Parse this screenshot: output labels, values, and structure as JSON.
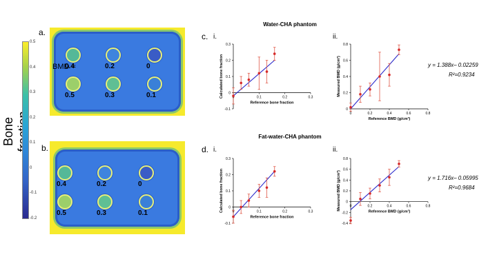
{
  "colorbar": {
    "label": "Bone fraction",
    "ticks": [
      "0.5",
      "0.4",
      "0.3",
      "0.2",
      "0.1",
      "0",
      "-0.1",
      "-0.2"
    ],
    "colors": [
      "#ffef2a",
      "#3cc0a8",
      "#2e87d8",
      "#2a2a8f"
    ]
  },
  "panel_a": {
    "letter": "a.",
    "bmd_prefix": "BMD =",
    "vial_labels": [
      "0.4",
      "0.2",
      "0",
      "0.5",
      "0.3",
      "0.1"
    ]
  },
  "panel_b": {
    "letter": "b.",
    "vial_labels": [
      "0.4",
      "0.2",
      "0",
      "0.5",
      "0.3",
      "0.1"
    ]
  },
  "panel_c": {
    "letter": "c.",
    "sub_i": "i.",
    "sub_ii": "ii.",
    "title": "Water-CHA phantom",
    "equation": "y = 1.388x– 0.02259",
    "r2": "R²=0.9234"
  },
  "panel_d": {
    "letter": "d.",
    "sub_i": "i.",
    "sub_ii": "ii.",
    "title": "Fat-water-CHA phantom",
    "equation": "y = 1.716x– 0.05995",
    "r2": "R²=0.9684"
  },
  "chart_data": [
    {
      "id": "c-i",
      "type": "scatter",
      "title": "",
      "xlabel": "Reference bone fraction",
      "ylabel": "Calculated bone fraction",
      "xlim": [
        0,
        0.3
      ],
      "ylim": [
        -0.1,
        0.3
      ],
      "xticks": [
        "0",
        "0.1",
        "0.2",
        "0.3"
      ],
      "yticks": [
        "-0.1",
        "0",
        "0.1",
        "0.2",
        "0.3"
      ],
      "x": [
        0,
        0.03,
        0.06,
        0.1,
        0.13,
        0.16
      ],
      "y": [
        -0.02,
        0.06,
        0.08,
        0.12,
        0.13,
        0.24
      ],
      "err": [
        0.05,
        0.04,
        0.04,
        0.1,
        0.07,
        0.04
      ],
      "fit": [
        [
          0,
          -0.02
        ],
        [
          0.16,
          0.2
        ]
      ]
    },
    {
      "id": "c-ii",
      "type": "scatter",
      "title": "",
      "xlabel": "Reference BMD (g/cm³)",
      "ylabel": "Measured BMD (g/cm³)",
      "xlim": [
        0,
        0.8
      ],
      "ylim": [
        0,
        0.8
      ],
      "xticks": [
        "0",
        "0.2",
        "0.4",
        "0.6",
        "0.8"
      ],
      "yticks": [
        "0",
        "0.2",
        "0.4",
        "0.6",
        "0.8"
      ],
      "x": [
        0,
        0.1,
        0.2,
        0.3,
        0.4,
        0.5
      ],
      "y": [
        0.02,
        0.18,
        0.24,
        0.4,
        0.42,
        0.73
      ],
      "err": [
        0.05,
        0.1,
        0.08,
        0.3,
        0.14,
        0.06
      ],
      "fit": [
        [
          0,
          0.0
        ],
        [
          0.5,
          0.68
        ]
      ]
    },
    {
      "id": "d-i",
      "type": "scatter",
      "title": "",
      "xlabel": "Reference bone fraction",
      "ylabel": "Calculated bone fraction",
      "xlim": [
        0,
        0.3
      ],
      "ylim": [
        -0.1,
        0.3
      ],
      "xticks": [
        "0",
        "0.1",
        "0.2",
        "0.3"
      ],
      "yticks": [
        "-0.1",
        "0",
        "0.1",
        "0.2",
        "0.3"
      ],
      "x": [
        0,
        0.03,
        0.06,
        0.1,
        0.13,
        0.16
      ],
      "y": [
        -0.06,
        0.0,
        0.04,
        0.1,
        0.12,
        0.22
      ],
      "err": [
        0.04,
        0.04,
        0.04,
        0.04,
        0.06,
        0.03
      ],
      "fit": [
        [
          0,
          -0.06
        ],
        [
          0.16,
          0.22
        ]
      ]
    },
    {
      "id": "d-ii",
      "type": "scatter",
      "title": "",
      "xlabel": "Reference BMD (g/cm³)",
      "ylabel": "Measured BMD (g/cm³)",
      "xlim": [
        0,
        0.8
      ],
      "ylim": [
        -0.4,
        0.8
      ],
      "xticks": [
        "0",
        "0.2",
        "0.4",
        "0.6",
        "0.8"
      ],
      "yticks": [
        "-0.4",
        "-0.2",
        "0",
        "0.2",
        "0.4",
        "0.6",
        "0.8"
      ],
      "x": [
        0,
        0.1,
        0.2,
        0.3,
        0.4,
        0.5
      ],
      "y": [
        -0.35,
        0.05,
        0.15,
        0.3,
        0.45,
        0.7
      ],
      "err": [
        0.06,
        0.12,
        0.1,
        0.12,
        0.15,
        0.06
      ],
      "fit": [
        [
          0,
          -0.15
        ],
        [
          0.5,
          0.65
        ]
      ]
    }
  ]
}
